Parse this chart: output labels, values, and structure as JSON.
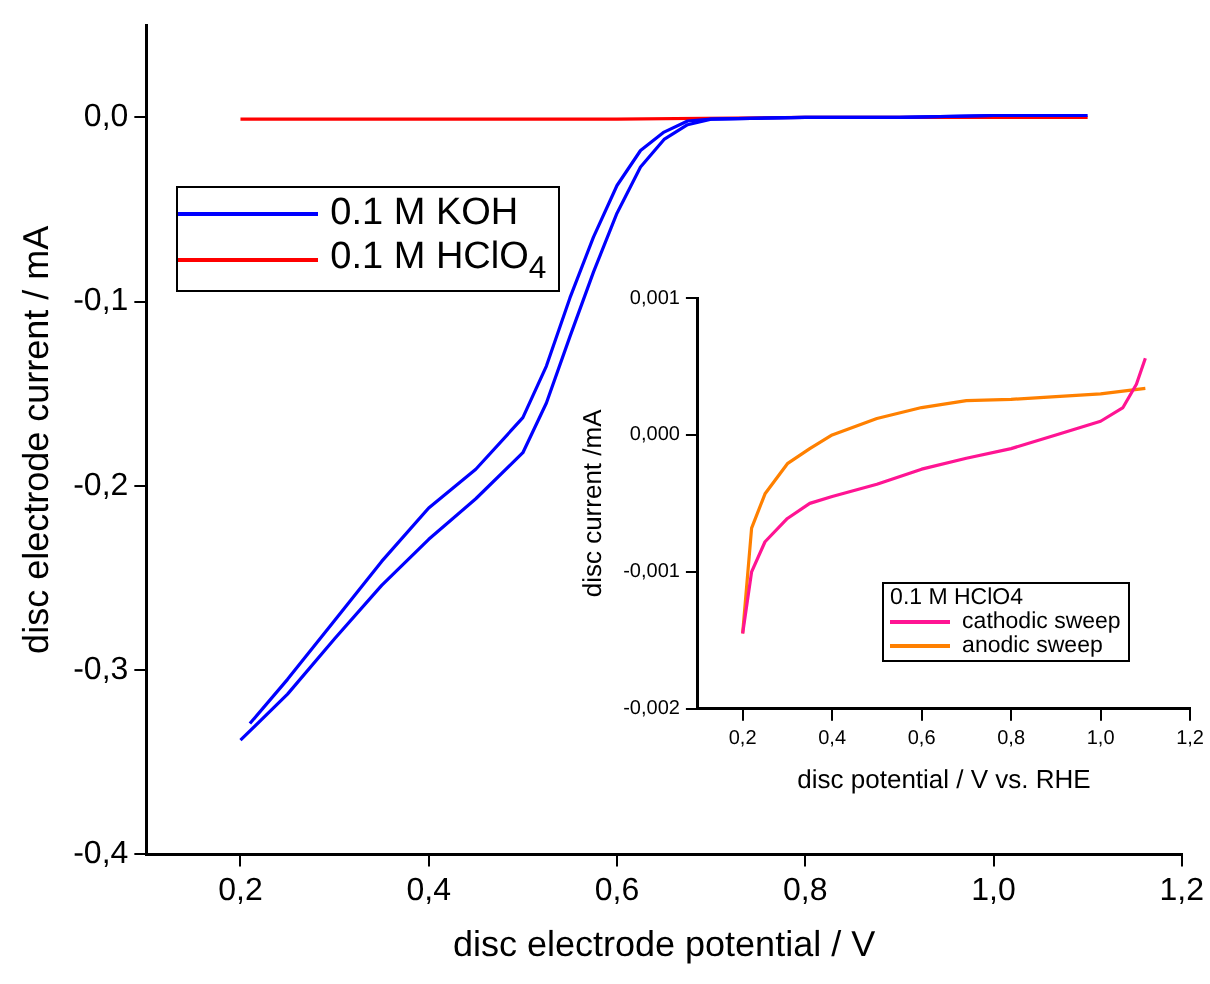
{
  "chart_data": [
    {
      "type": "line",
      "xlabel": "disc electrode potential / V",
      "ylabel": "disc electrode current / mA",
      "xlim": [
        0.1,
        1.2
      ],
      "ylim": [
        -0.4,
        0.05
      ],
      "xticks": [
        {
          "value": 0.2,
          "label": "0,2"
        },
        {
          "value": 0.4,
          "label": "0,4"
        },
        {
          "value": 0.6,
          "label": "0,6"
        },
        {
          "value": 0.8,
          "label": "0,8"
        },
        {
          "value": 1.0,
          "label": "1,0"
        },
        {
          "value": 1.2,
          "label": "1,2"
        }
      ],
      "yticks": [
        {
          "value": -0.4,
          "label": "-0,4"
        },
        {
          "value": -0.3,
          "label": "-0,3"
        },
        {
          "value": -0.2,
          "label": "-0,2"
        },
        {
          "value": -0.1,
          "label": "-0,1"
        },
        {
          "value": 0,
          "label": "0,0"
        }
      ],
      "legend": "top left",
      "grid": false,
      "marker": "none",
      "line_style": "solid",
      "series": [
        {
          "name": "0.1 M KOH",
          "color": "#0000ff",
          "x": [
            0.2,
            0.25,
            0.3,
            0.35,
            0.4,
            0.45,
            0.5,
            0.525,
            0.55,
            0.575,
            0.6,
            0.625,
            0.65,
            0.675,
            0.7,
            0.8,
            0.9,
            1.0,
            1.1
          ],
          "values": [
            -0.338,
            -0.313,
            -0.283,
            -0.254,
            -0.229,
            -0.207,
            -0.182,
            -0.155,
            -0.119,
            -0.084,
            -0.052,
            -0.027,
            -0.012,
            -0.004,
            -0.001,
            0,
            0,
            0.001,
            0.001
          ]
        },
        {
          "color": "#0000ff",
          "x": [
            0.21,
            0.25,
            0.3,
            0.35,
            0.4,
            0.45,
            0.5,
            0.525,
            0.55,
            0.575,
            0.6,
            0.625,
            0.65,
            0.675,
            0.7,
            0.8,
            0.9,
            1.0
          ],
          "values": [
            -0.329,
            -0.305,
            -0.273,
            -0.241,
            -0.212,
            -0.191,
            -0.163,
            -0.135,
            -0.098,
            -0.065,
            -0.037,
            -0.018,
            -0.008,
            -0.002,
            -0.001,
            0,
            0,
            0.001
          ]
        },
        {
          "name": "0.1 M HClO$_{4}$",
          "color": "#ff0000",
          "x": [
            0.2,
            0.4,
            0.6,
            0.8,
            1.0,
            1.1
          ],
          "values": [
            -0.001,
            -0.001,
            -0.001,
            0,
            0,
            0
          ]
        }
      ]
    },
    {
      "type": "line",
      "xlabel": "disc potential / V vs. RHE",
      "ylabel": "disc current /mA",
      "xlim": [
        0.1,
        1.2
      ],
      "ylim": [
        -0.002,
        0.001
      ],
      "xticks": [
        {
          "value": 0.2,
          "label": "0,2"
        },
        {
          "value": 0.4,
          "label": "0,4"
        },
        {
          "value": 0.6,
          "label": "0,6"
        },
        {
          "value": 0.8,
          "label": "0,8"
        },
        {
          "value": 1.0,
          "label": "1,0"
        },
        {
          "value": 1.2,
          "label": "1,2"
        }
      ],
      "yticks": [
        {
          "value": -0.002,
          "label": "-0,002"
        },
        {
          "value": -0.001,
          "label": "-0,001"
        },
        {
          "value": 0,
          "label": "0,000"
        },
        {
          "value": 0.001,
          "label": "0,001"
        }
      ],
      "legend": "bottom right",
      "legend_title": "0.1 M HClO4",
      "grid": false,
      "marker": "none",
      "line_style": "solid",
      "series": [
        {
          "name": "cathodic sweep",
          "color": "#ff1493",
          "x": [
            0.2,
            0.22,
            0.25,
            0.3,
            0.35,
            0.4,
            0.5,
            0.6,
            0.7,
            0.8,
            0.9,
            1.0,
            1.05,
            1.08,
            1.1
          ],
          "values": [
            -0.00145,
            -0.001,
            -0.00078,
            -0.00061,
            -0.0005,
            -0.00045,
            -0.00036,
            -0.00025,
            -0.00017,
            -0.0001,
            0,
            0.0001,
            0.0002,
            0.00037,
            0.00056
          ]
        },
        {
          "name": "anodic sweep",
          "color": "#ff8000",
          "x": [
            0.2,
            0.22,
            0.25,
            0.3,
            0.35,
            0.4,
            0.5,
            0.6,
            0.7,
            0.8,
            0.9,
            1.0,
            1.1
          ],
          "values": [
            -0.00145,
            -0.00068,
            -0.00043,
            -0.00021,
            -0.0001,
            0,
            0.00012,
            0.0002,
            0.00025,
            0.00026,
            0.00028,
            0.0003,
            0.00034
          ]
        }
      ]
    }
  ]
}
